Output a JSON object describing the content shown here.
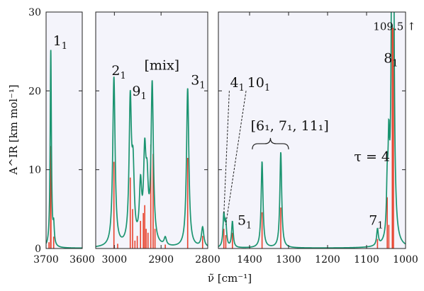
{
  "chart_data": {
    "type": "line",
    "xlabel": "ν̃ [cm⁻¹]",
    "ylabel": "A^IR [km mol⁻¹]",
    "ylim": [
      0,
      30
    ],
    "y_ticks": [
      "0",
      "10",
      "20",
      "30"
    ],
    "grid": false,
    "line_color": "#1b9470",
    "stick_color": "#e8412c",
    "panels": [
      {
        "xlim": [
          3700,
          3600
        ],
        "x_ticks": [
          {
            "value": 3700,
            "label": "3700"
          },
          {
            "value": 3600,
            "label": "3600"
          }
        ],
        "peaks": [
          {
            "x": 3687,
            "y": 25.0,
            "w": 2.0
          },
          {
            "x": 3679,
            "y": 2.3,
            "w": 2.0
          }
        ],
        "sticks": [
          {
            "x": 3687.5,
            "y": 13.0
          },
          {
            "x": 3686.5,
            "y": 10.5
          },
          {
            "x": 3692,
            "y": 0.8
          },
          {
            "x": 3679,
            "y": 1.5
          }
        ],
        "annotations": [
          {
            "text": "1",
            "sub": "1",
            "x": 3681,
            "y": 25.8
          }
        ]
      },
      {
        "xlim": [
          3040,
          2800
        ],
        "x_ticks": [
          {
            "value": 3000,
            "label": "3000"
          },
          {
            "value": 2900,
            "label": "2900"
          },
          {
            "value": 2800,
            "label": "2800"
          }
        ],
        "peaks": [
          {
            "x": 3001,
            "y": 21.5,
            "w": 3
          },
          {
            "x": 2966,
            "y": 17.8,
            "w": 3
          },
          {
            "x": 2960,
            "y": 8.5,
            "w": 3
          },
          {
            "x": 2944,
            "y": 7.0,
            "w": 3
          },
          {
            "x": 2935,
            "y": 10.5,
            "w": 3
          },
          {
            "x": 2930,
            "y": 6.5,
            "w": 3
          },
          {
            "x": 2919,
            "y": 20.2,
            "w": 3
          },
          {
            "x": 2891,
            "y": 1.0,
            "w": 3
          },
          {
            "x": 2843,
            "y": 20.2,
            "w": 3
          },
          {
            "x": 2811,
            "y": 2.5,
            "w": 3
          }
        ],
        "sticks": [
          {
            "x": 3001,
            "y": 11.0
          },
          {
            "x": 2993,
            "y": 0.6
          },
          {
            "x": 2966,
            "y": 9.0
          },
          {
            "x": 2961,
            "y": 5.0
          },
          {
            "x": 2956,
            "y": 1.0
          },
          {
            "x": 2951,
            "y": 1.6
          },
          {
            "x": 2944,
            "y": 3.5
          },
          {
            "x": 2938,
            "y": 4.5
          },
          {
            "x": 2935,
            "y": 5.5
          },
          {
            "x": 2932,
            "y": 2.5
          },
          {
            "x": 2928,
            "y": 2.0
          },
          {
            "x": 2922,
            "y": 13.2
          },
          {
            "x": 2917,
            "y": 12.0
          },
          {
            "x": 2913,
            "y": 2.5
          },
          {
            "x": 2891,
            "y": 0.5
          },
          {
            "x": 2843,
            "y": 11.5
          },
          {
            "x": 2811,
            "y": 1.6
          }
        ],
        "annotations": [
          {
            "text": "2",
            "sub": "1",
            "x": 3006,
            "y": 22.0
          },
          {
            "text": "9",
            "sub": "1",
            "x": 2962,
            "y": 19.4
          },
          {
            "text": "[mix]",
            "sub": "",
            "x": 2936,
            "y": 22.7
          },
          {
            "text": "3",
            "sub": "1",
            "x": 2836,
            "y": 20.8
          }
        ]
      },
      {
        "xlim": [
          1480,
          1000
        ],
        "x_ticks": [
          {
            "value": 1400,
            "label": "1400"
          },
          {
            "value": 1300,
            "label": "1300"
          },
          {
            "value": 1200,
            "label": "1200"
          },
          {
            "value": 1100,
            "label": "1100"
          },
          {
            "value": 1000,
            "label": "1000"
          }
        ],
        "peaks": [
          {
            "x": 1466,
            "y": 4.0,
            "w": 2.5
          },
          {
            "x": 1461,
            "y": 2.8,
            "w": 2.5
          },
          {
            "x": 1444,
            "y": 3.3,
            "w": 2.5
          },
          {
            "x": 1368,
            "y": 11.0,
            "w": 2.8
          },
          {
            "x": 1320,
            "y": 12.2,
            "w": 2.8
          },
          {
            "x": 1072,
            "y": 2.1,
            "w": 2.5
          },
          {
            "x": 1047,
            "y": 6.0,
            "w": 2.2
          },
          {
            "x": 1043,
            "y": 10.0,
            "w": 2.2
          },
          {
            "x": 1033,
            "y": 109.5,
            "w": 2.2
          }
        ],
        "sticks": [
          {
            "x": 1466,
            "y": 2.5
          },
          {
            "x": 1461,
            "y": 1.7
          },
          {
            "x": 1444,
            "y": 2.0
          },
          {
            "x": 1368,
            "y": 4.6
          },
          {
            "x": 1320,
            "y": 5.2
          },
          {
            "x": 1072,
            "y": 1.2
          },
          {
            "x": 1047,
            "y": 6.5
          },
          {
            "x": 1043,
            "y": 3.0
          },
          {
            "x": 1034,
            "y": 28.0
          },
          {
            "x": 1031,
            "y": 28.0
          }
        ],
        "annotations": [
          {
            "text": "4",
            "sub": "1",
            "x": 1450,
            "y": 20.5
          },
          {
            "text": "10",
            "sub": "1",
            "x": 1406,
            "y": 20.5
          },
          {
            "text": "[6",
            "sub": "1",
            "x": 1397,
            "y": 15.0
          },
          {
            "text": "5",
            "sub": "1",
            "x": 1431,
            "y": 3.0
          },
          {
            "text": "7",
            "sub": "1",
            "x": 1094,
            "y": 3.0
          },
          {
            "text": "τ = 4",
            "sub": "",
            "x": 1132,
            "y": 11.1
          },
          {
            "text": "8",
            "sub": "1",
            "x": 1056,
            "y": 23.6
          },
          {
            "text": "109.5 ↑",
            "sub": "",
            "x": 1083,
            "y": 27.7
          }
        ],
        "bracket_label": "[6₁, 7₁, 11₁]",
        "off_scale_label": "109.5 ↑"
      }
    ]
  }
}
